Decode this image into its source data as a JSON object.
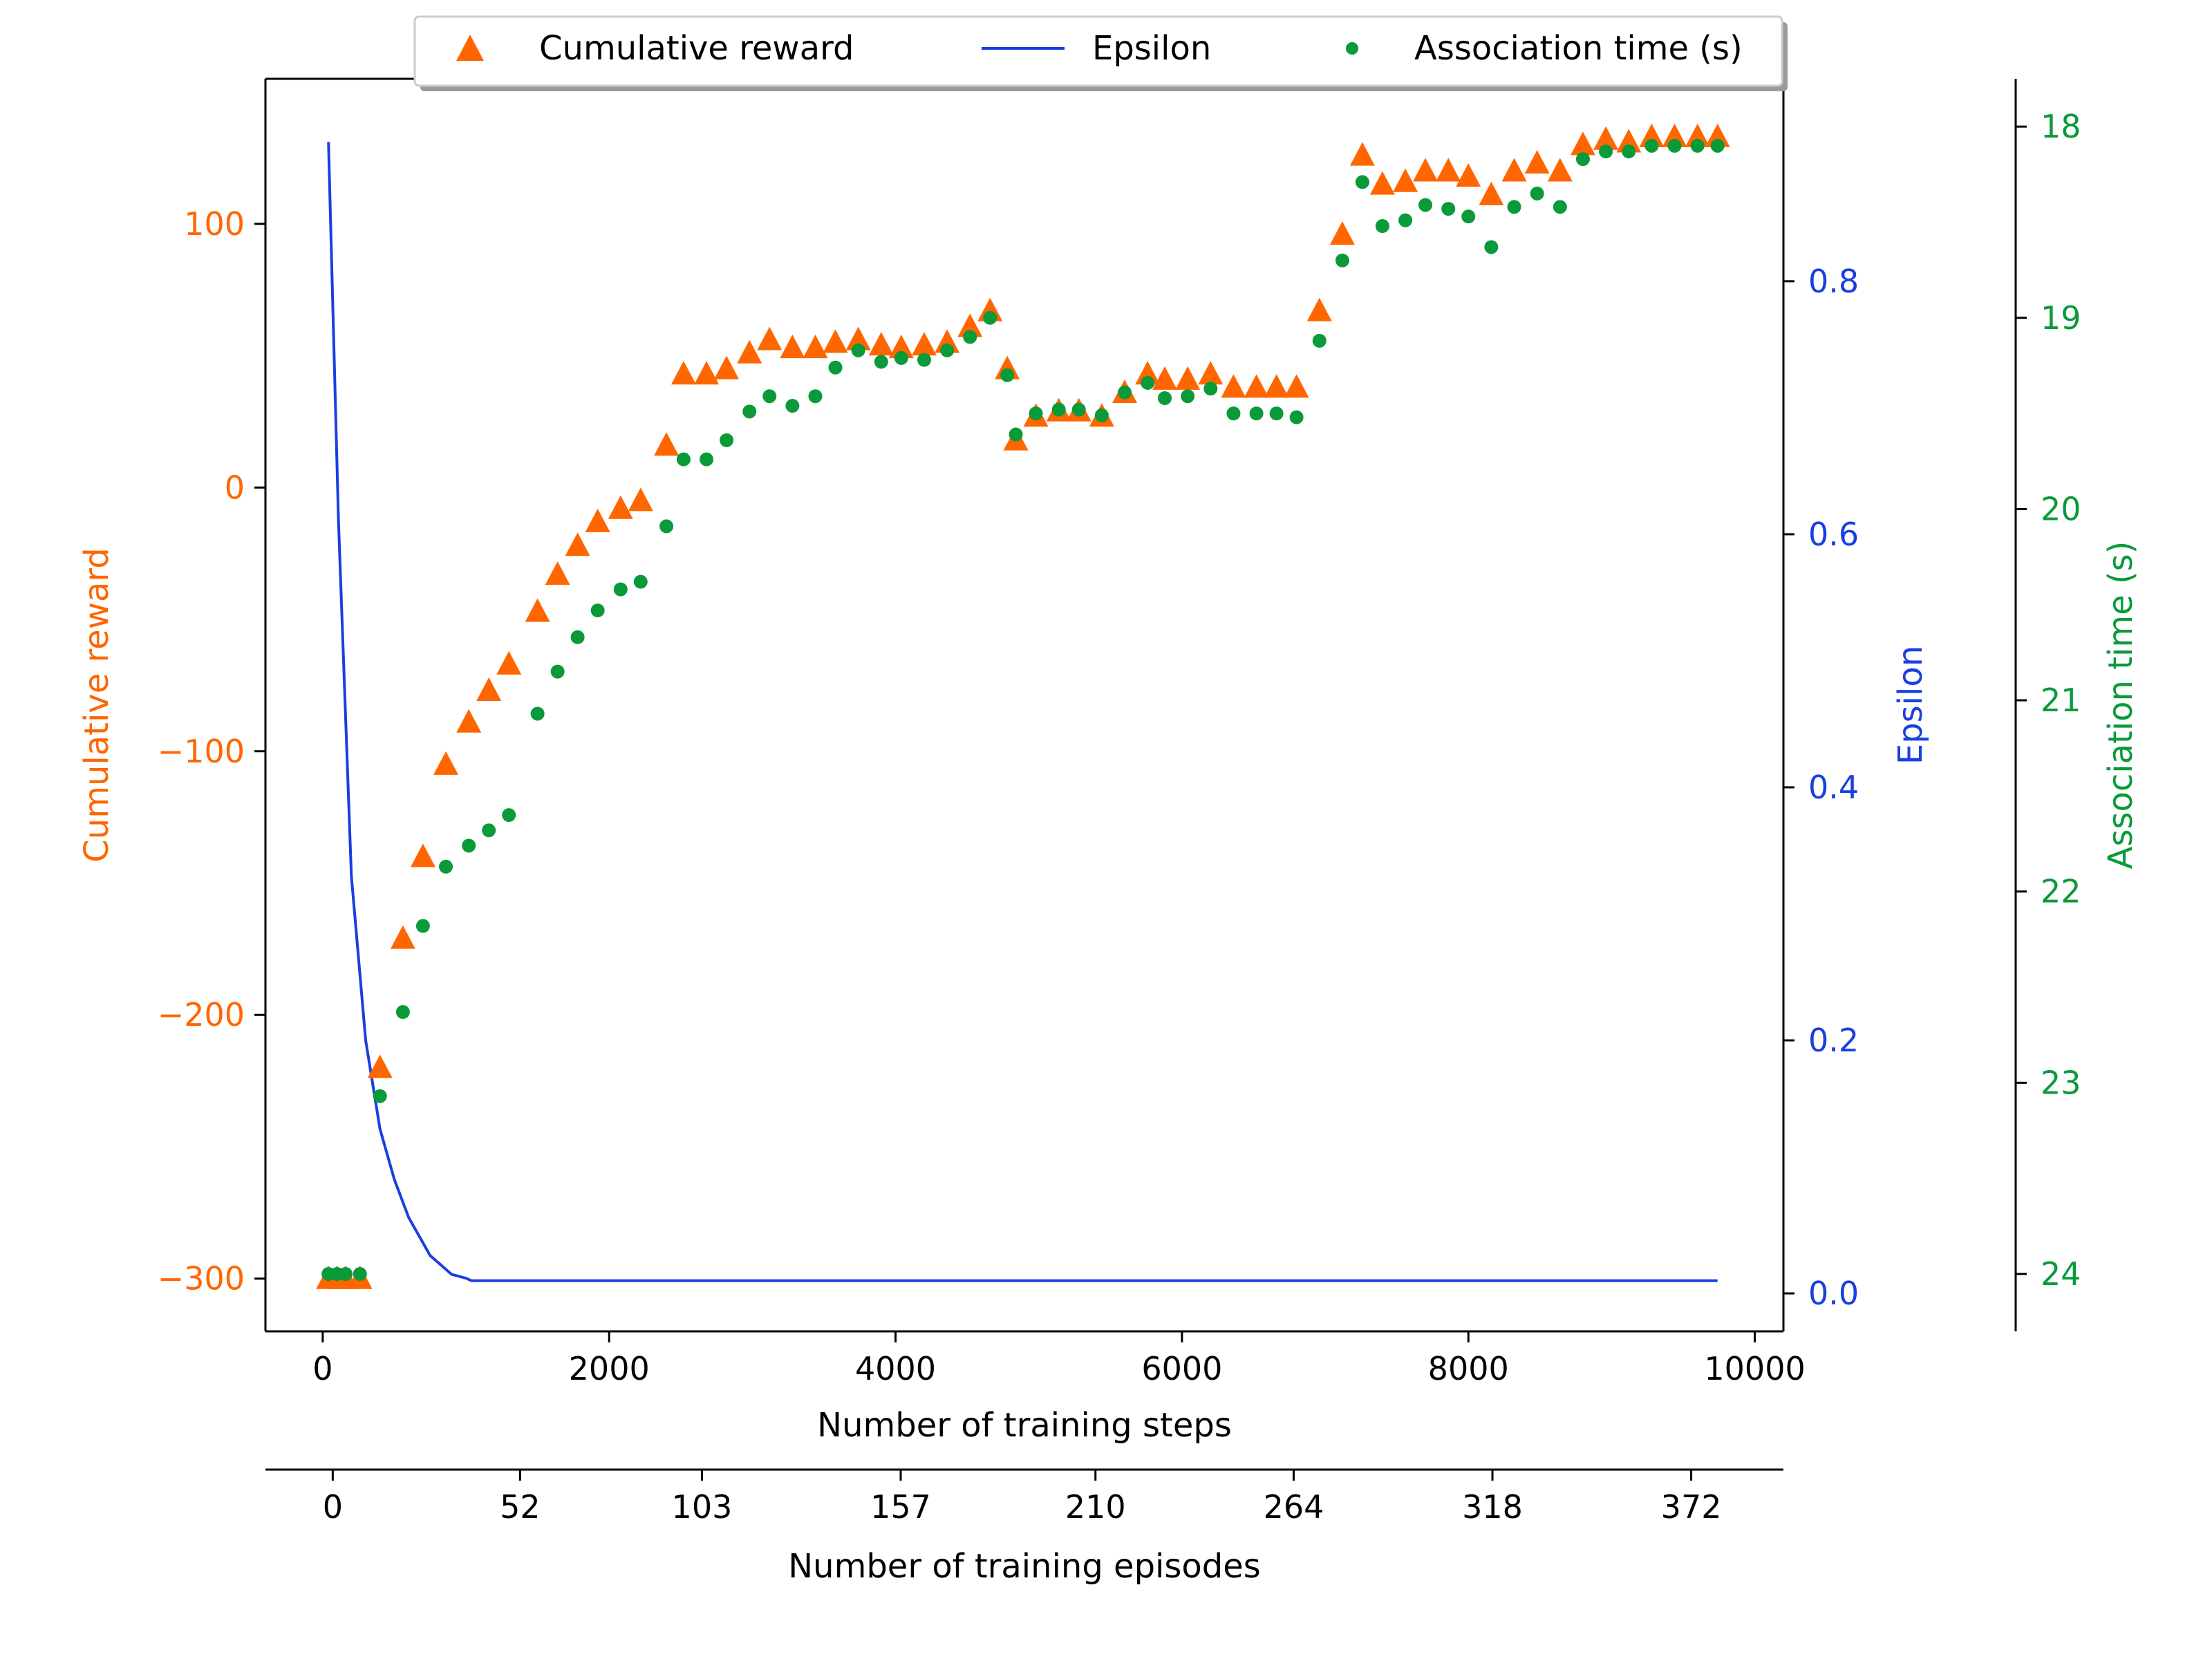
{
  "chart_data": {
    "type": "scatter",
    "legend": {
      "placement": "top-center",
      "entries": [
        {
          "label": "Cumulative reward",
          "marker": "triangle",
          "color": "#ff6600"
        },
        {
          "label": "Epsilon",
          "marker": "line",
          "color": "#1a3fe0"
        },
        {
          "label": "Association time (s)",
          "marker": "dot",
          "color": "#0a9a3a"
        }
      ]
    },
    "x_axis": {
      "label": "Number of training steps",
      "range": [
        -400,
        10200
      ],
      "ticks": [
        0,
        2000,
        4000,
        6000,
        8000,
        10000
      ],
      "tick_labels": [
        "0",
        "2000",
        "4000",
        "6000",
        "8000",
        "10000"
      ]
    },
    "x2_axis": {
      "label": "Number of training episodes",
      "ticks": [
        0,
        52,
        103,
        157,
        210,
        264,
        318,
        372
      ],
      "tick_labels": [
        "0",
        "52",
        "103",
        "157",
        "210",
        "264",
        "318",
        "372"
      ],
      "tick_steps": [
        70,
        1378,
        2648,
        4036,
        5396,
        6780,
        8168,
        9556
      ]
    },
    "y_left": {
      "label": "Cumulative reward",
      "color": "#ff6600",
      "range": [
        -320,
        155
      ],
      "ticks": [
        -300,
        -200,
        -100,
        0,
        100
      ],
      "tick_labels": [
        "−300",
        "−200",
        "−100",
        "0",
        "100"
      ]
    },
    "y_right": {
      "label": "Epsilon",
      "color": "#1a3fe0",
      "range": [
        -0.03,
        0.96
      ],
      "ticks": [
        0.0,
        0.2,
        0.4,
        0.6,
        0.8
      ],
      "tick_labels": [
        "0.0",
        "0.2",
        "0.4",
        "0.6",
        "0.8"
      ]
    },
    "y_far_right": {
      "label": "Association time (s)",
      "color": "#0a9a3a",
      "range": [
        24.3,
        17.75
      ],
      "inverted": true,
      "ticks": [
        18,
        19,
        20,
        21,
        22,
        23,
        24
      ],
      "tick_labels": [
        "18",
        "19",
        "20",
        "21",
        "22",
        "23",
        "24"
      ]
    },
    "series": [
      {
        "name": "Cumulative reward",
        "axis": "y_left",
        "marker": "triangle",
        "color": "#ff6600",
        "x": [
          40,
          100,
          160,
          260,
          400,
          560,
          700,
          860,
          1020,
          1160,
          1300,
          1500,
          1640,
          1780,
          1920,
          2080,
          2220,
          2400,
          2520,
          2680,
          2820,
          2980,
          3120,
          3280,
          3440,
          3580,
          3740,
          3900,
          4040,
          4200,
          4360,
          4520,
          4660,
          4780,
          4840,
          4980,
          5140,
          5280,
          5440,
          5600,
          5760,
          5880,
          6040,
          6200,
          6360,
          6520,
          6660,
          6800,
          6960,
          7120,
          7260,
          7400,
          7560,
          7700,
          7860,
          8000,
          8160,
          8320,
          8480,
          8640,
          8800,
          8960,
          9120,
          9280,
          9440,
          9600,
          9740
        ],
        "values": [
          -300,
          -300,
          -300,
          -300,
          -220,
          -171,
          -140,
          -105,
          -89,
          -77,
          -67,
          -47,
          -33,
          -22,
          -13,
          -8,
          -5,
          16,
          43,
          43,
          45,
          51,
          56,
          53,
          53,
          55,
          56,
          54,
          53,
          54,
          55,
          61,
          67,
          45,
          18,
          27,
          29,
          29,
          27,
          36,
          43,
          41,
          41,
          43,
          38,
          38,
          38,
          38,
          67,
          96,
          126,
          115,
          116,
          120,
          120,
          118,
          111,
          120,
          123,
          120,
          130,
          132,
          131,
          133,
          133,
          133,
          133
        ]
      },
      {
        "name": "Epsilon",
        "axis": "y_right",
        "marker": "line",
        "color": "#1a3fe0",
        "x": [
          40,
          110,
          200,
          300,
          400,
          500,
          600,
          750,
          900,
          1000,
          1040,
          9740
        ],
        "values": [
          0.91,
          0.61,
          0.33,
          0.2,
          0.13,
          0.09,
          0.06,
          0.03,
          0.015,
          0.012,
          0.01,
          0.01
        ]
      },
      {
        "name": "Association time (s)",
        "axis": "y_far_right",
        "marker": "dot",
        "color": "#0a9a3a",
        "x": [
          40,
          100,
          160,
          260,
          400,
          560,
          700,
          860,
          1020,
          1160,
          1300,
          1500,
          1640,
          1780,
          1920,
          2080,
          2220,
          2400,
          2520,
          2680,
          2820,
          2980,
          3120,
          3280,
          3440,
          3580,
          3740,
          3900,
          4040,
          4200,
          4360,
          4520,
          4660,
          4780,
          4840,
          4980,
          5140,
          5280,
          5440,
          5600,
          5760,
          5880,
          6040,
          6200,
          6360,
          6520,
          6660,
          6800,
          6960,
          7120,
          7260,
          7400,
          7560,
          7700,
          7860,
          8000,
          8160,
          8320,
          8480,
          8640,
          8800,
          8960,
          9120,
          9280,
          9440,
          9600,
          9740
        ],
        "values": [
          24,
          24,
          24,
          24,
          23.07,
          22.63,
          22.18,
          21.87,
          21.76,
          21.68,
          21.6,
          21.07,
          20.85,
          20.67,
          20.53,
          20.42,
          20.38,
          20.09,
          19.74,
          19.74,
          19.64,
          19.49,
          19.41,
          19.46,
          19.41,
          19.26,
          19.17,
          19.23,
          19.21,
          19.22,
          19.17,
          19.1,
          19.0,
          19.3,
          19.61,
          19.5,
          19.48,
          19.48,
          19.51,
          19.39,
          19.34,
          19.42,
          19.41,
          19.37,
          19.5,
          19.5,
          19.5,
          19.52,
          19.12,
          18.7,
          18.29,
          18.52,
          18.49,
          18.41,
          18.43,
          18.47,
          18.63,
          18.42,
          18.35,
          18.42,
          18.17,
          18.13,
          18.13,
          18.1,
          18.1,
          18.1,
          18.1
        ]
      }
    ]
  }
}
